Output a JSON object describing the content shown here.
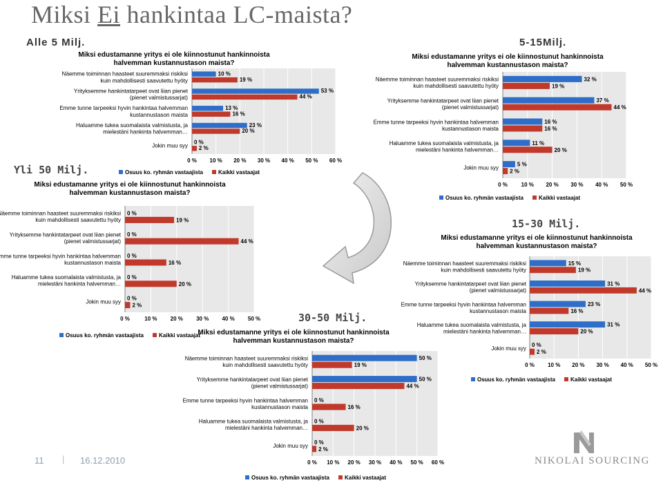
{
  "slide": {
    "title_pre": "Miksi ",
    "title_underlined": "Ei",
    "title_post": " hankintaa LC-maista?",
    "page_number": "11",
    "separator": "|",
    "date": "16.12.2010",
    "logo_text": "NIKOLAI SOURCING"
  },
  "segments": {
    "alle5": "Alle 5 Milj.",
    "s5_15": "5-15Milj.",
    "yli50": "Yli 50 Milj.",
    "s15_30": "15-30 Milj.",
    "s30_50": "30-50 Milj."
  },
  "colors": {
    "blue": "#2e6ec8",
    "red": "#c0392b",
    "gridline": "#bfbfbf",
    "plot_bg": "#e8e8e8"
  },
  "chart_data": [
    {
      "type": "bar",
      "segment": "Alle 5 Milj.",
      "title": "Miksi edustamanne yritys ei ole kiinnostunut hankinnoista halvemman kustannustason maista?",
      "categories": [
        "Näemme toiminnan haasteet suuremmaksi riskiksi kuin mahdollisesti saavutettu hyöty",
        "Yrityksemme hankintatarpeet ovat liian pienet (pienet valmistussarjat)",
        "Emme tunne tarpeeksi hyvin hankintaa halvemman kustannustason maista",
        "Haluamme tukea suomalaista valmistusta, ja mielestäni hankinta halvemman…",
        "Jokin muu syy"
      ],
      "series": [
        {
          "name": "Osuus ko. ryhmän vastaajista",
          "values": [
            10,
            53,
            13,
            23,
            0
          ]
        },
        {
          "name": "Kaikki vastaajat",
          "values": [
            19,
            44,
            16,
            20,
            2
          ]
        }
      ],
      "value_labels": [
        [
          "10 %",
          "53 %",
          "13 %",
          "23 %",
          "0 %"
        ],
        [
          "19 %",
          "44 %",
          "16 %",
          "20 %",
          "2 %"
        ]
      ],
      "xlim": [
        0,
        60
      ],
      "x_ticks": [
        "0 %",
        "10 %",
        "20 %",
        "30 %",
        "40 %",
        "50 %",
        "60 %"
      ],
      "legend_position": "bottom"
    },
    {
      "type": "bar",
      "segment": "5-15Milj.",
      "title": "Miksi edustamanne yritys ei ole kiinnostunut hankinnoista halvemman kustannustason maista?",
      "categories": [
        "Näemme toiminnan haasteet suuremmaksi riskiksi kuin mahdollisesti saavutettu hyöty",
        "Yrityksemme hankintatarpeet ovat liian pienet (pienet valmistussarjat)",
        "Emme tunne tarpeeksi hyvin hankintaa halvemman kustannustason maista",
        "Haluamme tukea suomalaista valmistusta, ja mielestäni hankinta halvemman…",
        "Jokin muu syy"
      ],
      "series": [
        {
          "name": "Osuus ko. ryhmän vastaajista",
          "values": [
            32,
            37,
            16,
            11,
            5
          ]
        },
        {
          "name": "Kaikki vastaajat",
          "values": [
            19,
            44,
            16,
            20,
            2
          ]
        }
      ],
      "value_labels": [
        [
          "32 %",
          "37 %",
          "16 %",
          "11 %",
          "5 %"
        ],
        [
          "19 %",
          "44 %",
          "16 %",
          "20 %",
          "2 %"
        ]
      ],
      "xlim": [
        0,
        50
      ],
      "x_ticks": [
        "0 %",
        "10 %",
        "20 %",
        "30 %",
        "40 %",
        "50 %"
      ],
      "legend_position": "bottom"
    },
    {
      "type": "bar",
      "segment": "Yli 50 Milj.",
      "title": "Miksi edustamanne yritys ei ole kiinnostunut hankinnoista halvemman kustannustason maista?",
      "categories": [
        "Näemme toiminnan haasteet suuremmaksi riskiksi kuin mahdollisesti saavutettu hyöty",
        "Yrityksemme hankintatarpeet ovat liian pienet (pienet valmistussarjat)",
        "Emme tunne tarpeeksi hyvin hankintaa halvemman kustannustason maista",
        "Haluamme tukea suomalaista valmistusta, ja mielestäni hankinta halvemman…",
        "Jokin muu syy"
      ],
      "series": [
        {
          "name": "Osuus ko. ryhmän vastaajista",
          "values": [
            0,
            0,
            0,
            0,
            0
          ]
        },
        {
          "name": "Kaikki vastaajat",
          "values": [
            19,
            44,
            16,
            20,
            2
          ]
        }
      ],
      "value_labels": [
        [
          "0 %",
          "0 %",
          "0 %",
          "0 %",
          "0 %"
        ],
        [
          "19 %",
          "44 %",
          "16 %",
          "20 %",
          "2 %"
        ]
      ],
      "xlim": [
        0,
        50
      ],
      "x_ticks": [
        "0 %",
        "10 %",
        "20 %",
        "30 %",
        "40 %",
        "50 %"
      ],
      "legend_position": "bottom"
    },
    {
      "type": "bar",
      "segment": "15-30 Milj.",
      "title": "Miksi edustamanne yritys ei ole kiinnostunut hankinnoista halvemman kustannustason maista?",
      "categories": [
        "Näemme toiminnan haasteet suuremmaksi riskiksi kuin mahdollisesti saavutettu hyöty",
        "Yrityksemme hankintatarpeet ovat liian pienet (pienet valmistussarjat)",
        "Emme tunne tarpeeksi hyvin hankintaa halvemman kustannustason maista",
        "Haluamme tukea suomalaista valmistusta, ja mielestäni hankinta halvemman…",
        "Jokin muu syy"
      ],
      "series": [
        {
          "name": "Osuus ko. ryhmän vastaajista",
          "values": [
            15,
            31,
            23,
            31,
            0
          ]
        },
        {
          "name": "Kaikki vastaajat",
          "values": [
            19,
            44,
            16,
            20,
            2
          ]
        }
      ],
      "value_labels": [
        [
          "15 %",
          "31 %",
          "23 %",
          "31 %",
          "0 %"
        ],
        [
          "19 %",
          "44 %",
          "16 %",
          "20 %",
          "2 %"
        ]
      ],
      "xlim": [
        0,
        50
      ],
      "x_ticks": [
        "0 %",
        "10 %",
        "20 %",
        "30 %",
        "40 %",
        "50 %"
      ],
      "legend_position": "bottom"
    },
    {
      "type": "bar",
      "segment": "30-50 Milj.",
      "title": "Miksi edustamanne yritys ei ole kiinnostunut hankinnoista halvemman kustannustason maista?",
      "categories": [
        "Näemme toiminnan haasteet suuremmaksi riskiksi kuin mahdollisesti saavutettu hyöty",
        "Yrityksemme hankintatarpeet ovat liian pienet (pienet valmistussarjat)",
        "Emme tunne tarpeeksi hyvin hankintaa halvemman kustannustason maista",
        "Haluamme tukea suomalaista valmistusta, ja mielestäni hankinta halvemman…",
        "Jokin muu syy"
      ],
      "series": [
        {
          "name": "Osuus ko. ryhmän vastaajista",
          "values": [
            50,
            50,
            0,
            0,
            0
          ]
        },
        {
          "name": "Kaikki vastaajat",
          "values": [
            19,
            44,
            16,
            20,
            2
          ]
        }
      ],
      "value_labels": [
        [
          "50 %",
          "50 %",
          "0 %",
          "0 %",
          "0 %"
        ],
        [
          "19 %",
          "44 %",
          "16 %",
          "20 %",
          "2 %"
        ]
      ],
      "xlim": [
        0,
        60
      ],
      "x_ticks": [
        "0 %",
        "10 %",
        "20 %",
        "30 %",
        "40 %",
        "50 %",
        "60 %"
      ],
      "legend_position": "bottom"
    }
  ]
}
